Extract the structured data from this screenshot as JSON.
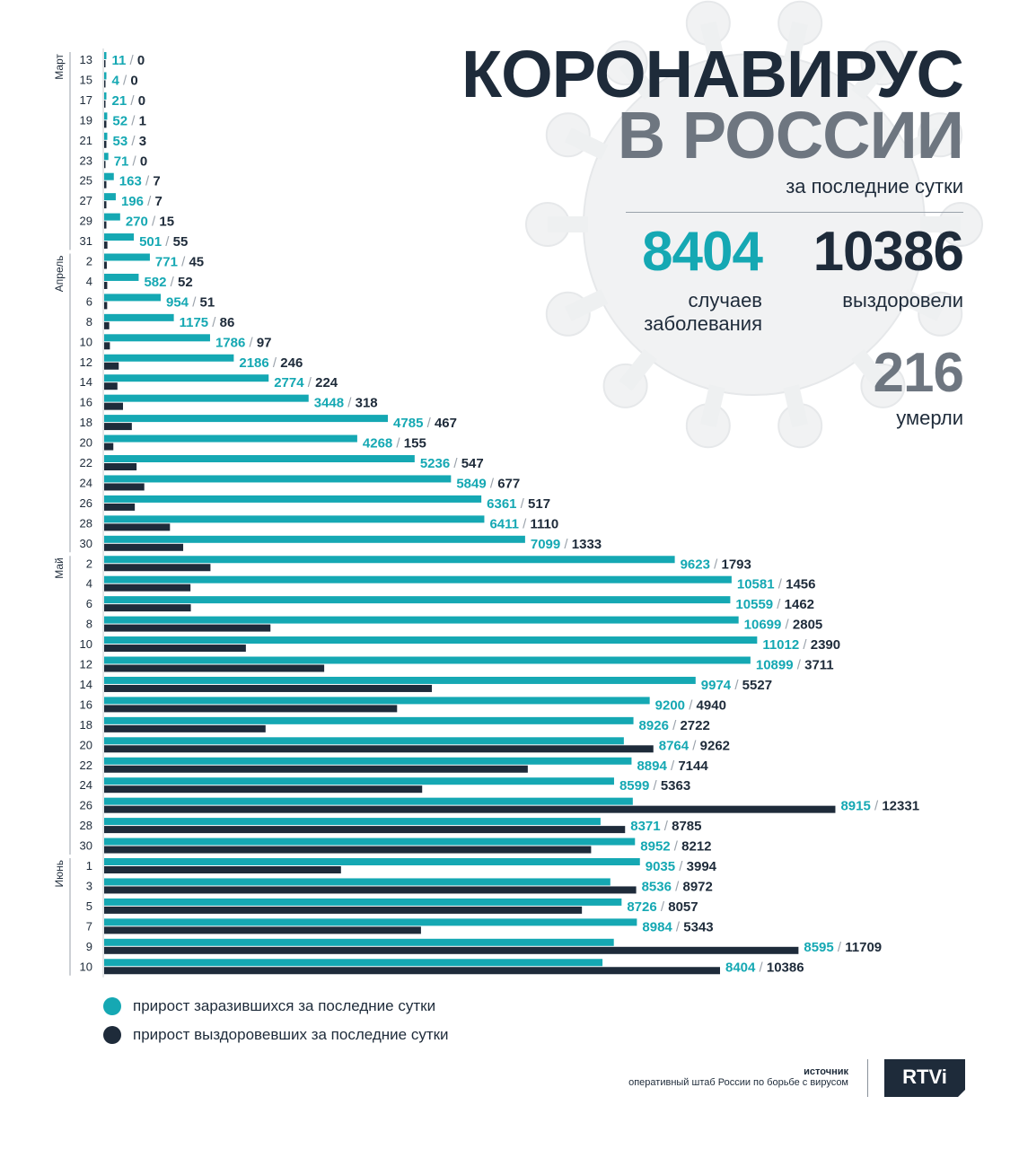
{
  "header": {
    "title_line1": "КОРОНАВИРУС",
    "title_line2": "В РОССИИ",
    "subtitle": "за последние сутки"
  },
  "summary": {
    "cases_value": "8404",
    "cases_label_line1": "случаев",
    "cases_label_line2": "заболевания",
    "recovered_value": "10386",
    "recovered_label": "выздоровели",
    "deaths_value": "216",
    "deaths_label": "умерли"
  },
  "legend": {
    "cases": "прирост заразившихся за последние сутки",
    "recovered": "прирост выздоровевших за последние сутки"
  },
  "footer": {
    "source_label": "источник",
    "source_text": "оперативный штаб России по борьбе с вирусом",
    "logo_text": "RTVi"
  },
  "colors": {
    "cases": "#15a8b3",
    "recovered": "#1e2b3a",
    "muted": "#6e7680"
  },
  "chart_data": {
    "type": "bar",
    "orientation": "horizontal",
    "months": [
      {
        "label": "Март",
        "start": 0,
        "end": 9
      },
      {
        "label": "Апрель",
        "start": 10,
        "end": 24
      },
      {
        "label": "Май",
        "start": 25,
        "end": 39
      },
      {
        "label": "Июнь",
        "start": 40,
        "end": 45
      }
    ],
    "categories": [
      "13",
      "15",
      "17",
      "19",
      "21",
      "23",
      "25",
      "27",
      "29",
      "31",
      "2",
      "4",
      "6",
      "8",
      "10",
      "12",
      "14",
      "16",
      "18",
      "20",
      "22",
      "24",
      "26",
      "28",
      "30",
      "2",
      "4",
      "6",
      "8",
      "10",
      "12",
      "14",
      "16",
      "18",
      "20",
      "22",
      "24",
      "26",
      "28",
      "30",
      "1",
      "3",
      "5",
      "7",
      "9",
      "10"
    ],
    "series": [
      {
        "key": "cases",
        "values": [
          11,
          4,
          21,
          52,
          53,
          71,
          163,
          196,
          270,
          501,
          771,
          582,
          954,
          1175,
          1786,
          2186,
          2774,
          3448,
          4785,
          4268,
          5236,
          5849,
          6361,
          6411,
          7099,
          9623,
          10581,
          10559,
          10699,
          11012,
          10899,
          9974,
          9200,
          8926,
          8764,
          8894,
          8599,
          8915,
          8371,
          8952,
          9035,
          8536,
          8726,
          8984,
          8595,
          8404
        ]
      },
      {
        "key": "recovered",
        "values": [
          0,
          0,
          0,
          1,
          3,
          0,
          7,
          7,
          15,
          55,
          45,
          52,
          51,
          86,
          97,
          246,
          224,
          318,
          467,
          155,
          547,
          677,
          517,
          1110,
          1333,
          1793,
          1456,
          1462,
          2805,
          2390,
          3711,
          5527,
          4940,
          2722,
          9262,
          7144,
          5363,
          12331,
          8785,
          8212,
          3994,
          8972,
          8057,
          5343,
          11709,
          10386
        ]
      }
    ],
    "xlim": [
      0,
      12331
    ]
  }
}
